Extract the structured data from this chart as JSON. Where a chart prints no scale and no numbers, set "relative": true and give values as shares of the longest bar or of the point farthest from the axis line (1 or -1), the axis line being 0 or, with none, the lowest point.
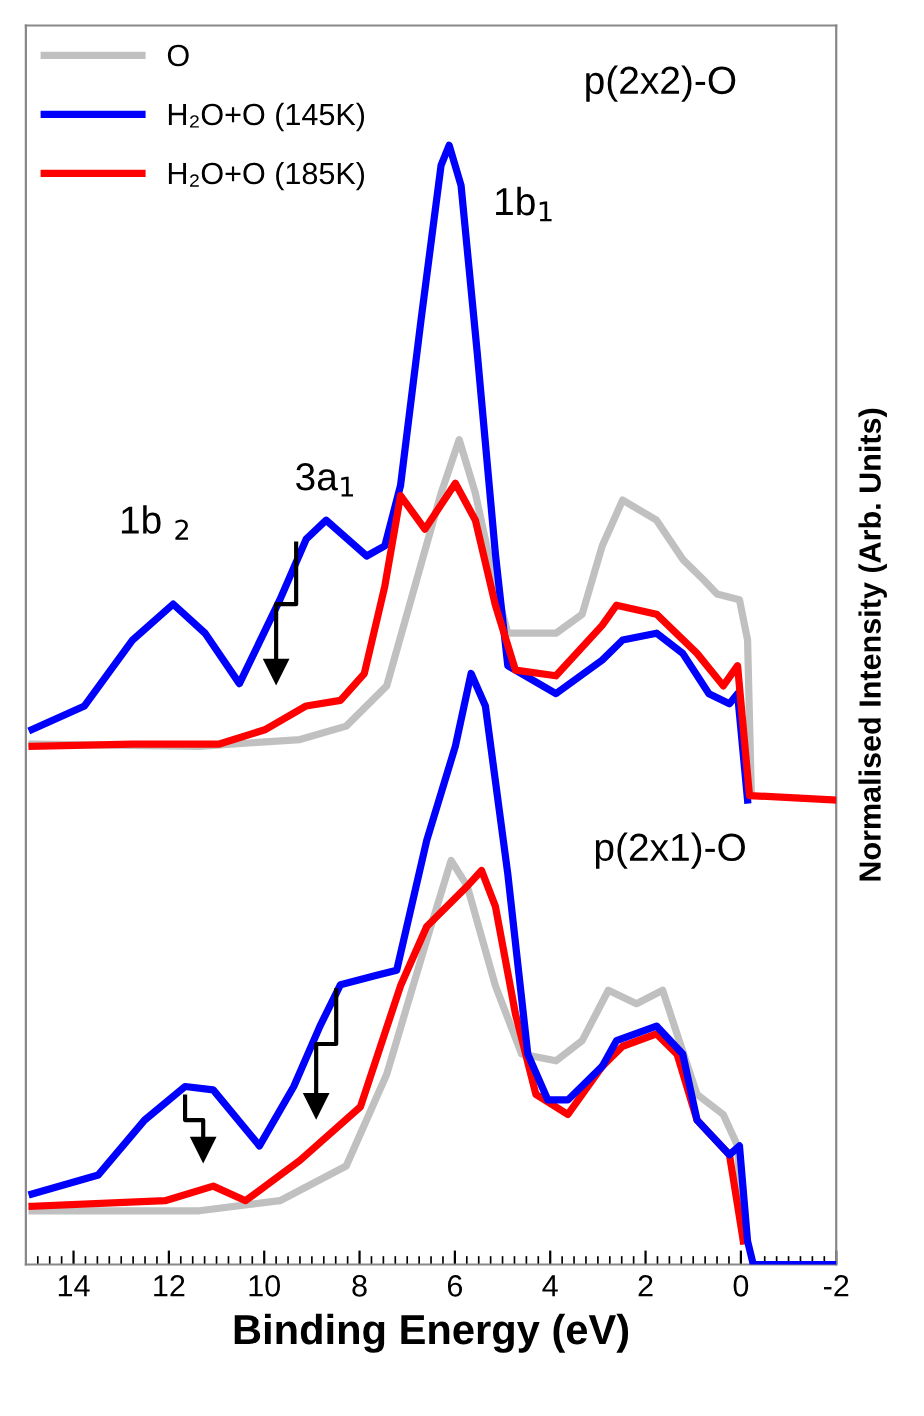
{
  "chart_data": {
    "type": "line",
    "relative": true,
    "xlabel": "Binding Energy (eV)",
    "ylabel": "Normalised Intensity (Arb. Units)",
    "xlim": [
      15,
      -2
    ],
    "xticks": [
      14,
      12,
      10,
      8,
      6,
      4,
      2,
      0,
      -2
    ],
    "grid": false,
    "legend": "top left",
    "marker": "none",
    "line_style": "solid",
    "tick_labels": "x",
    "series": [
      {
        "name": "O",
        "color": "#c0c0c0",
        "x": [
          14.87,
          11.36,
          9.25,
          8.28,
          7.43,
          6.84,
          6.29,
          5.91,
          5.57,
          5.15,
          4.89,
          3.88,
          3.33,
          2.91,
          2.48,
          1.77,
          1.22,
          0.79,
          0.5,
          0.03,
          -0.14,
          -0.22
        ],
        "values": [
          0.465,
          0.463,
          0.469,
          0.481,
          0.517,
          0.606,
          0.689,
          0.737,
          0.689,
          0.606,
          0.564,
          0.564,
          0.581,
          0.642,
          0.683,
          0.665,
          0.63,
          0.612,
          0.599,
          0.594,
          0.558,
          0.419
        ]
      },
      {
        "name": "H₂O+O (145K)",
        "color": "#0000ff",
        "x": [
          14.87,
          13.77,
          12.76,
          11.91,
          11.24,
          10.52,
          9.67,
          9.12,
          8.7,
          7.85,
          7.47,
          7.14,
          6.71,
          6.29,
          6.12,
          5.87,
          5.53,
          5.15,
          4.89,
          3.88,
          2.91,
          2.48,
          1.77,
          1.22,
          0.67,
          0.24,
          0.07,
          -0.14
        ],
        "values": [
          0.478,
          0.499,
          0.558,
          0.59,
          0.564,
          0.519,
          0.594,
          0.648,
          0.665,
          0.633,
          0.642,
          0.696,
          0.844,
          0.982,
          1.0,
          0.964,
          0.814,
          0.635,
          0.535,
          0.51,
          0.54,
          0.558,
          0.564,
          0.546,
          0.51,
          0.501,
          0.51,
          0.415
        ]
      },
      {
        "name": "H₂O+O (185K)",
        "color": "#ff0000",
        "x": [
          14.87,
          12.76,
          10.94,
          9.97,
          9.12,
          8.4,
          7.9,
          7.47,
          7.14,
          6.63,
          5.99,
          5.57,
          5.15,
          4.73,
          3.88,
          2.91,
          2.61,
          1.77,
          0.92,
          0.37,
          0.07,
          -0.18,
          -2
        ],
        "values": [
          0.463,
          0.465,
          0.465,
          0.478,
          0.499,
          0.504,
          0.528,
          0.606,
          0.687,
          0.657,
          0.698,
          0.665,
          0.589,
          0.531,
          0.526,
          0.571,
          0.589,
          0.581,
          0.546,
          0.517,
          0.535,
          0.419,
          0.415
        ]
      },
      {
        "color": "#c0c0c0",
        "x": [
          14.87,
          11.36,
          9.67,
          8.28,
          7.43,
          6.59,
          6.08,
          5.74,
          5.15,
          4.6,
          3.88,
          3.33,
          2.78,
          2.19,
          1.64,
          1.34,
          0.92,
          0.37,
          0.07,
          -0.05
        ],
        "values": [
          0.048,
          0.048,
          0.057,
          0.088,
          0.17,
          0.29,
          0.361,
          0.338,
          0.249,
          0.188,
          0.182,
          0.2,
          0.245,
          0.233,
          0.245,
          0.206,
          0.152,
          0.134,
          0.106,
          0.021
        ]
      },
      {
        "color": "#ff0000",
        "x": [
          14.87,
          12.08,
          11.07,
          10.39,
          9.25,
          7.98,
          7.14,
          6.59,
          5.74,
          5.44,
          5.15,
          4.73,
          4.3,
          3.63,
          2.91,
          2.48,
          1.77,
          1.34,
          0.92,
          0.24,
          -0.05
        ],
        "values": [
          0.052,
          0.057,
          0.07,
          0.057,
          0.093,
          0.141,
          0.249,
          0.302,
          0.338,
          0.352,
          0.32,
          0.224,
          0.152,
          0.134,
          0.177,
          0.195,
          0.206,
          0.188,
          0.129,
          0.098,
          0.021
        ]
      },
      {
        "color": "#0000ff",
        "x": [
          14.87,
          13.48,
          12.51,
          11.66,
          11.07,
          10.1,
          9.38,
          8.83,
          8.4,
          7.68,
          7.22,
          6.59,
          5.99,
          5.66,
          5.36,
          4.89,
          4.47,
          4.05,
          3.63,
          2.91,
          2.61,
          1.77,
          1.22,
          0.92,
          0.24,
          0.03,
          -0.14,
          -0.26,
          -2
        ],
        "values": [
          0.063,
          0.08,
          0.129,
          0.159,
          0.156,
          0.106,
          0.159,
          0.213,
          0.25,
          0.258,
          0.263,
          0.379,
          0.463,
          0.528,
          0.499,
          0.349,
          0.188,
          0.147,
          0.147,
          0.177,
          0.2,
          0.213,
          0.188,
          0.129,
          0.098,
          0.106,
          0.021,
          0.0,
          0.0
        ]
      }
    ],
    "annotations": [
      "p(2x2)-O",
      "1b$_{1}$",
      "3a$_{1}$",
      "1b $_{2}$",
      "p(2x1)-O"
    ]
  }
}
